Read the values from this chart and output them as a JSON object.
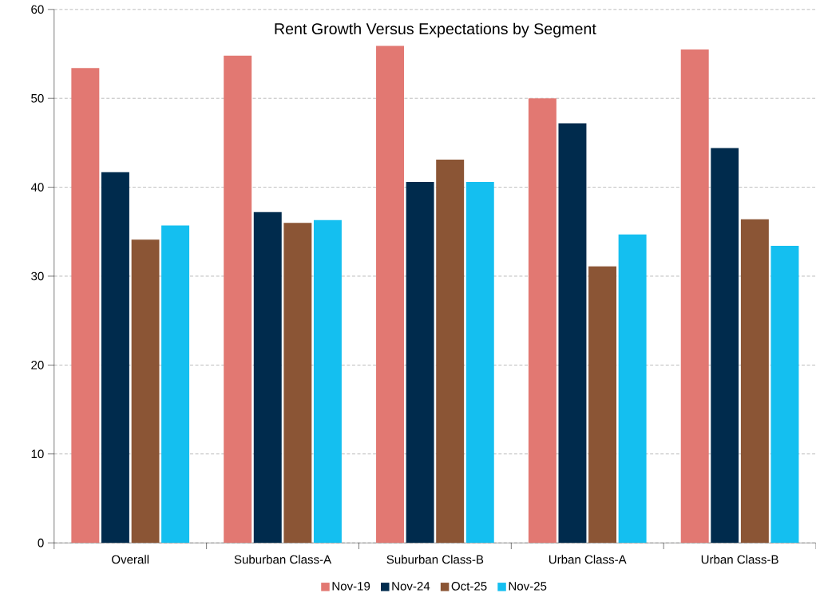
{
  "chart_data": {
    "type": "bar",
    "title": "Rent Growth Versus Expectations by Segment",
    "categories": [
      "Overall",
      "Suburban Class-A",
      "Suburban Class-B",
      "Urban Class-A",
      "Urban Class-B"
    ],
    "series": [
      {
        "name": "Nov-19",
        "color": "#e27872",
        "values": [
          53.4,
          54.8,
          55.9,
          50.0,
          55.5
        ]
      },
      {
        "name": "Nov-24",
        "color": "#002b4d",
        "values": [
          41.7,
          37.2,
          40.6,
          47.2,
          44.4
        ]
      },
      {
        "name": "Oct-25",
        "color": "#8b5535",
        "values": [
          34.1,
          36.0,
          43.1,
          31.1,
          36.4
        ]
      },
      {
        "name": "Nov-25",
        "color": "#14bff0",
        "values": [
          35.7,
          36.3,
          40.6,
          34.7,
          33.4
        ]
      }
    ],
    "ylim": [
      0,
      60
    ],
    "yticks": [
      0,
      10,
      20,
      30,
      40,
      50,
      60
    ],
    "grid": "y",
    "legend": "bottom"
  }
}
